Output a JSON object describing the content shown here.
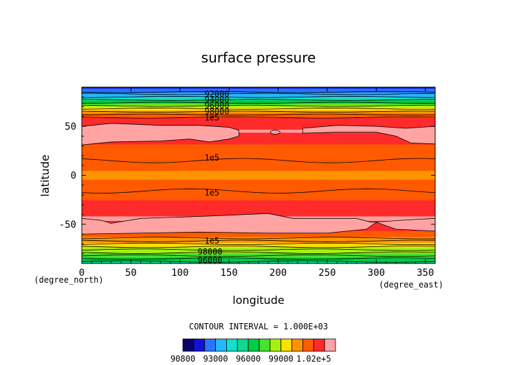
{
  "chart_data": {
    "type": "heatmap",
    "title": "surface pressure",
    "xlabel": "longitude",
    "ylabel": "latitude",
    "x_unit": "(degree_east)",
    "y_unit": "(degree_north)",
    "xlim": [
      0,
      360
    ],
    "ylim": [
      -90,
      90
    ],
    "x_ticks": [
      0,
      50,
      100,
      150,
      200,
      250,
      300,
      350
    ],
    "y_ticks": [
      50,
      0,
      -50
    ],
    "contour_interval_text": "CONTOUR INTERVAL = 1.000E+03",
    "colorbar": {
      "levels": [
        90800,
        91000,
        92000,
        93000,
        94000,
        95000,
        96000,
        97000,
        98000,
        99000,
        100000,
        101000,
        102000
      ],
      "colors": [
        "#0a006e",
        "#1212d6",
        "#2a74ff",
        "#25b7ff",
        "#12e0c8",
        "#10d890",
        "#00cc44",
        "#48e22c",
        "#a8f010",
        "#ffe000",
        "#ff9400",
        "#ff5a00",
        "#ff2a2a",
        "#ffa3a3"
      ],
      "tick_labels": [
        "90800",
        "93000",
        "96000",
        "99000",
        "1.02e+5"
      ]
    },
    "zonal_profile": {
      "latitude": [
        90,
        85,
        80,
        76,
        72,
        68,
        65,
        62,
        60,
        57,
        52,
        48,
        44,
        40,
        35,
        30,
        25,
        20,
        15,
        10,
        5,
        0,
        -5,
        -10,
        -15,
        -20,
        -25,
        -30,
        -35,
        -40,
        -45,
        -50,
        -55,
        -60,
        -63,
        -66,
        -70,
        -74,
        -78,
        -82,
        -86,
        -90
      ],
      "pressure": [
        90800,
        91500,
        93000,
        95000,
        97000,
        98500,
        99500,
        100300,
        100800,
        101200,
        101700,
        101950,
        102050,
        101800,
        101300,
        100900,
        100700,
        100500,
        100300,
        100100,
        100000,
        99950,
        100000,
        100100,
        100300,
        100600,
        100900,
        101300,
        101700,
        101950,
        102050,
        101900,
        101300,
        100700,
        100100,
        99500,
        98700,
        98000,
        97200,
        96400,
        95500,
        94800
      ]
    },
    "contour_labels": [
      {
        "text": "92000",
        "lon": 125,
        "lat": 83
      },
      {
        "text": "94000",
        "lon": 125,
        "lat": 77
      },
      {
        "text": "96000",
        "lon": 125,
        "lat": 71
      },
      {
        "text": "98000",
        "lon": 125,
        "lat": 65
      },
      {
        "text": "1e5",
        "lon": 125,
        "lat": 59
      },
      {
        "text": "1e5",
        "lon": 125,
        "lat": 18
      },
      {
        "text": "1e5",
        "lon": 125,
        "lat": -18
      },
      {
        "text": "1e5",
        "lon": 125,
        "lat": -67
      },
      {
        "text": "98000",
        "lon": 118,
        "lat": -78
      },
      {
        "text": "96000",
        "lon": 118,
        "lat": -87
      }
    ]
  }
}
